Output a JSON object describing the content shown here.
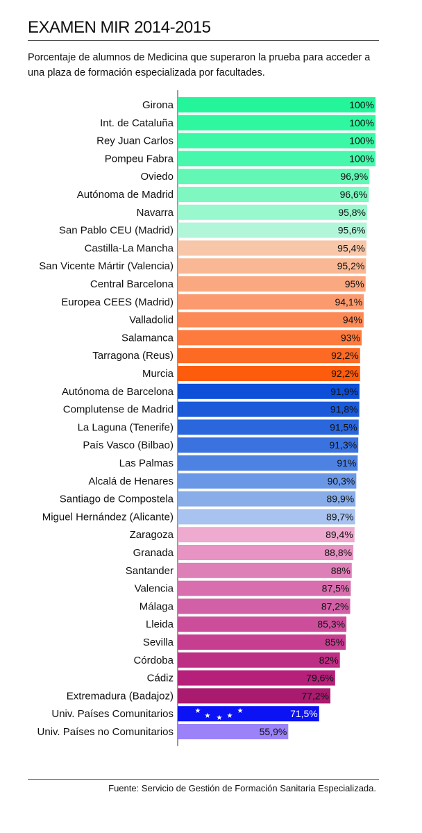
{
  "title": "EXAMEN MIR 2014-2015",
  "subtitle": "Porcentaje de alumnos de Medicina que superaron la prueba para acceder a una plaza de formación especializada por facultades.",
  "source": "Fuente: Servicio de Gestión de Formación Sanitaria Especializada.",
  "chart_data": {
    "type": "bar",
    "orientation": "horizontal",
    "title": "EXAMEN MIR 2014-2015",
    "xlim": [
      0,
      100
    ],
    "grid": false,
    "categories": [
      "Girona",
      "Int. de Cataluña",
      "Rey Juan Carlos",
      "Pompeu Fabra",
      "Oviedo",
      "Autónoma de Madrid",
      "Navarra",
      "San Pablo CEU (Madrid)",
      "Castilla-La Mancha",
      "San Vicente Mártir (Valencia)",
      "Central Barcelona",
      "Europea CEES (Madrid)",
      "Valladolid",
      "Salamanca",
      "Tarragona (Reus)",
      "Murcia",
      "Autónoma de Barcelona",
      "Complutense de Madrid",
      "La Laguna (Tenerife)",
      "País Vasco (Bilbao)",
      "Las Palmas",
      "Alcalá de Henares",
      "Santiago de Compostela",
      "Miguel Hernández (Alicante)",
      "Zaragoza",
      "Granada",
      "Santander",
      "Valencia",
      "Málaga",
      "Lleida",
      "Sevilla",
      "Córdoba",
      "Cádiz",
      "Extremadura (Badajoz)",
      "Univ. Países Comunitarios",
      "Univ. Países no Comunitarios"
    ],
    "values": [
      100,
      100,
      100,
      100,
      96.9,
      96.6,
      95.8,
      95.6,
      95.4,
      95.2,
      95,
      94.1,
      94,
      93,
      92.2,
      92.2,
      91.9,
      91.8,
      91.5,
      91.3,
      91,
      90.3,
      89.9,
      89.7,
      89.4,
      88.8,
      88,
      87.5,
      87.2,
      85.3,
      85,
      82,
      79.6,
      77.2,
      71.5,
      55.9
    ],
    "labels": [
      "100%",
      "100%",
      "100%",
      "100%",
      "96,9%",
      "96,6%",
      "95,8%",
      "95,6%",
      "95,4%",
      "95,2%",
      "95%",
      "94,1%",
      "94%",
      "93%",
      "92,2%",
      "92,2%",
      "91,9%",
      "91,8%",
      "91,5%",
      "91,3%",
      "91%",
      "90,3%",
      "89,9%",
      "89,7%",
      "89,4%",
      "88,8%",
      "88%",
      "87,5%",
      "87,2%",
      "85,3%",
      "85%",
      "82%",
      "79,6%",
      "77,2%",
      "71,5%",
      "55,9%"
    ],
    "colors": [
      "#24f59b",
      "#2ef7a0",
      "#3af8a6",
      "#46f7ac",
      "#63f7b6",
      "#7ff7c1",
      "#99f8cd",
      "#b2f6d9",
      "#f8c6a8",
      "#f9b793",
      "#faa880",
      "#fb9a6e",
      "#fc8a56",
      "#fd7b3f",
      "#fd6a24",
      "#fd5c0c",
      "#0d4fd8",
      "#1b5ad9",
      "#2a66dc",
      "#3a73df",
      "#4d82e2",
      "#6a98e7",
      "#88ade9",
      "#a8c3ef",
      "#eeaacf",
      "#e793c3",
      "#de80b8",
      "#d86eae",
      "#d260a6",
      "#cc4e9b",
      "#c53e90",
      "#bd2e85",
      "#b61f7a",
      "#a91b6e",
      "#0b12f3",
      "#9b82f9"
    ],
    "label_colors": [
      "#111",
      "#111",
      "#111",
      "#111",
      "#111",
      "#111",
      "#111",
      "#111",
      "#111",
      "#111",
      "#111",
      "#111",
      "#111",
      "#111",
      "#111",
      "#111",
      "#111",
      "#111",
      "#111",
      "#111",
      "#111",
      "#111",
      "#111",
      "#111",
      "#111",
      "#111",
      "#111",
      "#111",
      "#111",
      "#111",
      "#111",
      "#111",
      "#111",
      "#111",
      "#ffffff",
      "#111"
    ],
    "eu_flag_star_icon": "star-icon"
  }
}
